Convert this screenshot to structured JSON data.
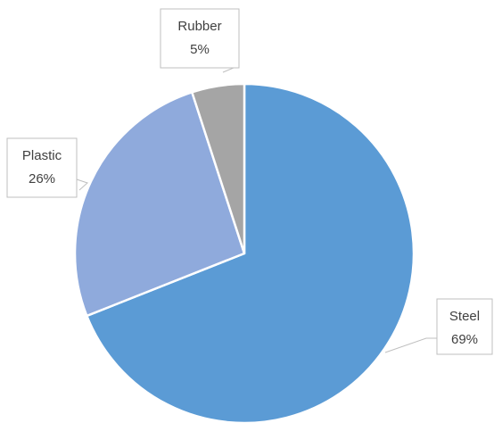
{
  "chart_data": {
    "type": "pie",
    "title": "",
    "categories": [
      "Steel",
      "Plastic",
      "Rubber"
    ],
    "values": [
      69,
      26,
      5
    ],
    "data_labels": [
      "69%",
      "26%",
      "5%"
    ],
    "legend": "none",
    "colors": [
      "#5b9bd5",
      "#8faadc",
      "#a5a5a5"
    ]
  }
}
